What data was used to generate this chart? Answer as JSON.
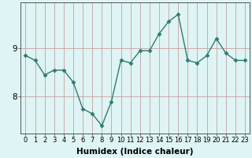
{
  "x": [
    0,
    1,
    2,
    3,
    4,
    5,
    6,
    7,
    8,
    9,
    10,
    11,
    12,
    13,
    14,
    15,
    16,
    17,
    18,
    19,
    20,
    21,
    22,
    23
  ],
  "y": [
    8.85,
    8.75,
    8.45,
    8.55,
    8.55,
    8.3,
    7.75,
    7.65,
    7.4,
    7.9,
    8.75,
    8.7,
    8.95,
    8.95,
    9.3,
    9.55,
    9.7,
    8.75,
    8.7,
    8.85,
    9.2,
    8.9,
    8.75,
    8.75
  ],
  "line_color": "#2d7d6e",
  "marker": "D",
  "marker_size": 2.5,
  "background_color": "#dff4f4",
  "grid_color": "#c8a0a0",
  "xlabel": "Humidex (Indice chaleur)",
  "xlabel_fontsize": 7.5,
  "ytick_labels": [
    "8",
    "9"
  ],
  "ytick_values": [
    8.0,
    9.0
  ],
  "ylim": [
    7.25,
    9.95
  ],
  "xlim": [
    -0.5,
    23.5
  ],
  "xtick_fontsize": 6.0,
  "ytick_fontsize": 7.5,
  "line_width": 1.0,
  "fig_width": 3.2,
  "fig_height": 2.0,
  "dpi": 100
}
